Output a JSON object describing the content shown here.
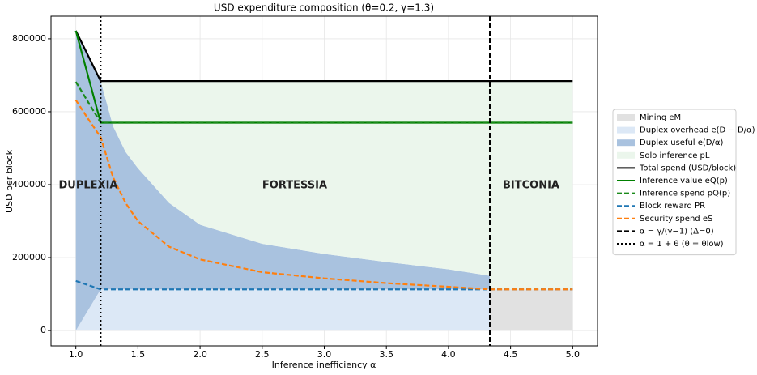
{
  "chart_data": {
    "type": "composition",
    "title": "USD expenditure composition (θ=0.2, γ=1.3)",
    "x_label": "Inference inefficiency α",
    "y_label": "USD per block",
    "xlim": [
      0.8,
      5.2
    ],
    "ylim": [
      -42000,
      862000
    ],
    "xticks": [
      {
        "value": 1,
        "label": "1.0"
      },
      {
        "value": 1.5,
        "label": "1.5"
      },
      {
        "value": 2,
        "label": "2.0"
      },
      {
        "value": 2.5,
        "label": "2.5"
      },
      {
        "value": 3,
        "label": "3.0"
      },
      {
        "value": 3.5,
        "label": "3.5"
      },
      {
        "value": 4,
        "label": "4.0"
      },
      {
        "value": 4.5,
        "label": "4.5"
      },
      {
        "value": 5,
        "label": "5.0"
      }
    ],
    "yticks": [
      0,
      200000,
      400000,
      600000,
      800000
    ],
    "grid": true,
    "regions": [
      "DUPLEXIA",
      "FORTESSIA",
      "BITCONIA"
    ],
    "series": [
      {
        "name": "Mining eM",
        "kind": "area",
        "color": "#e1e1e1",
        "x": [
          4.333,
          5.0
        ],
        "values": [
          113000,
          113000
        ],
        "base": [
          0,
          0
        ]
      },
      {
        "name": "Duplex overhead e(D − D/α)",
        "kind": "area",
        "color": "#dce8f6",
        "x": [
          1.0,
          1.2,
          4.333
        ],
        "values": [
          0,
          113000,
          113000
        ],
        "base": [
          0,
          0,
          0
        ]
      },
      {
        "name": "Duplex useful e(D/α)",
        "kind": "area",
        "color": "#a9c2df",
        "x": [
          1.0,
          1.1,
          1.2,
          1.3,
          1.4,
          1.5,
          1.75,
          2.0,
          2.5,
          3.0,
          3.5,
          4.0,
          4.333
        ],
        "values": [
          822000,
          753000,
          684000,
          560000,
          490000,
          445000,
          350000,
          290000,
          238000,
          210000,
          188000,
          168000,
          150000
        ],
        "base": [
          0,
          56500,
          113000,
          113000,
          113000,
          113000,
          113000,
          113000,
          113000,
          113000,
          113000,
          113000,
          113000
        ]
      },
      {
        "name": "Solo inference pL",
        "kind": "area",
        "color": "#ebf6ec",
        "x": [
          1.2,
          1.3,
          1.4,
          1.5,
          1.75,
          2.0,
          2.5,
          3.0,
          3.5,
          4.0,
          4.333,
          4.333,
          5.0
        ],
        "values": [
          684000,
          684000,
          684000,
          684000,
          684000,
          684000,
          684000,
          684000,
          684000,
          684000,
          684000,
          684000,
          684000
        ],
        "base": [
          684000,
          560000,
          490000,
          445000,
          350000,
          290000,
          238000,
          210000,
          188000,
          168000,
          150000,
          113000,
          113000
        ]
      },
      {
        "name": "Total spend (USD/block)",
        "kind": "line",
        "dash": "solid",
        "color": "#000000",
        "x": [
          1.0,
          1.2,
          5.0
        ],
        "values": [
          822000,
          684000,
          684000
        ]
      },
      {
        "name": "Inference value eQ(p)",
        "kind": "line",
        "dash": "solid",
        "color": "#008000",
        "x": [
          1.0,
          1.2,
          5.0
        ],
        "values": [
          822000,
          570000,
          570000
        ]
      },
      {
        "name": "Inference spend pQ(p)",
        "kind": "line",
        "dash": "dashed",
        "color": "#1a8a1a",
        "x": [
          1.0,
          1.2,
          5.0
        ],
        "values": [
          682000,
          570000,
          570000
        ]
      },
      {
        "name": "Block reward PR",
        "kind": "line",
        "dash": "dashed",
        "color": "#1f77b4",
        "x": [
          1.0,
          1.2,
          5.0
        ],
        "values": [
          136000,
          113000,
          113000
        ]
      },
      {
        "name": "Security spend eS",
        "kind": "line",
        "dash": "dashed",
        "color": "#ff7f0e",
        "x": [
          1.0,
          1.1,
          1.2,
          1.3,
          1.4,
          1.5,
          1.75,
          2.0,
          2.5,
          3.0,
          3.5,
          4.0,
          4.333,
          5.0
        ],
        "values": [
          632000,
          580000,
          530000,
          420000,
          350000,
          300000,
          230000,
          195000,
          160000,
          143000,
          130000,
          120000,
          113000,
          113000
        ]
      }
    ],
    "vlines": [
      {
        "name": "α = γ/(γ−1)  (Δ=0)",
        "x": 4.333,
        "dash": "dashed",
        "color": "#000000"
      },
      {
        "name": "α = 1 + θ  (θ = θlow)",
        "x": 1.2,
        "dash": "dotted",
        "color": "#000000"
      }
    ]
  }
}
